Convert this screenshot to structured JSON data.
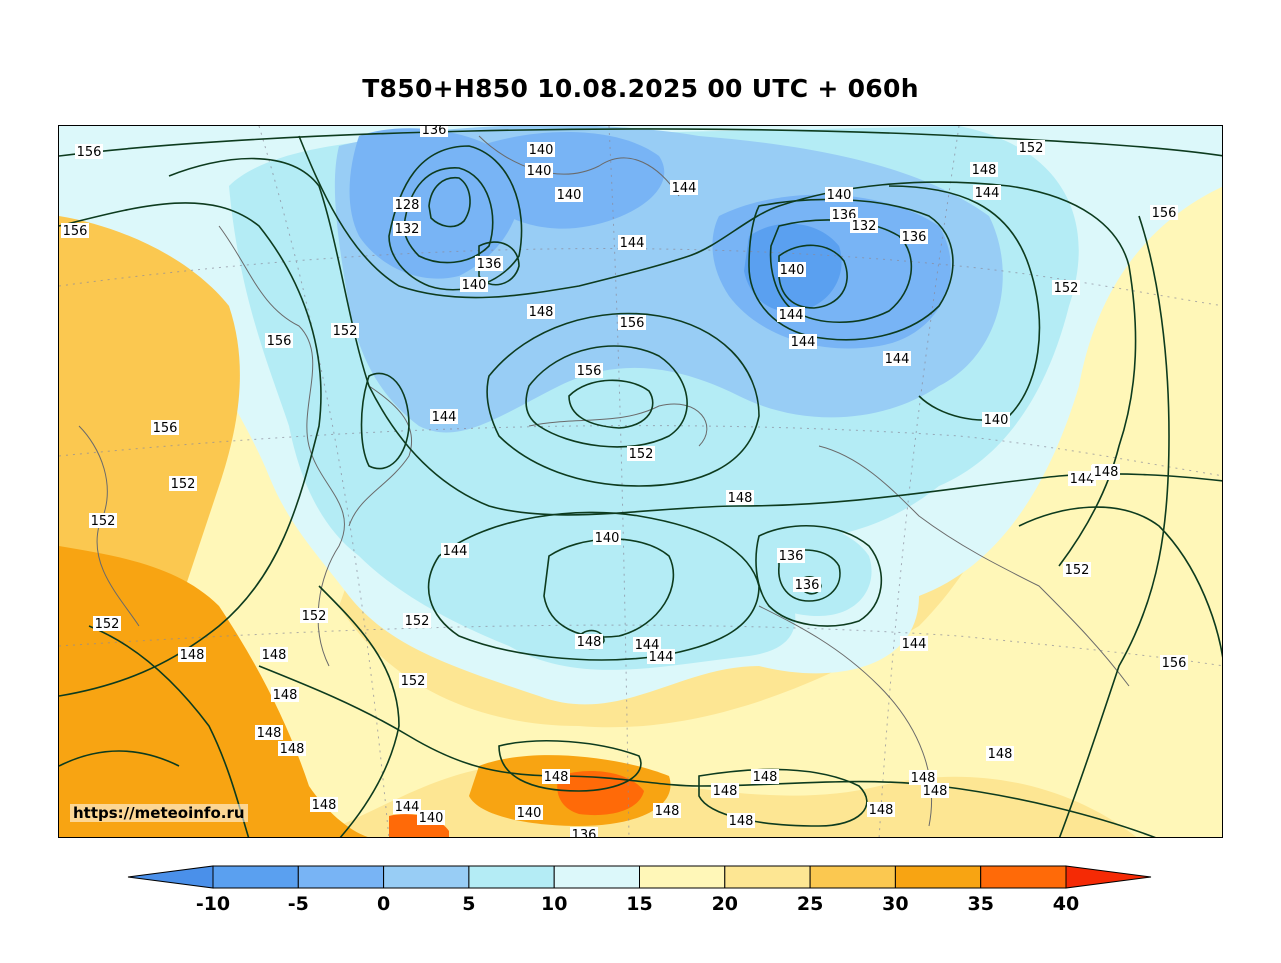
{
  "title": "T850+H850 10.08.2025 00 UTC + 060h",
  "watermark": "https://meteoinfo.ru",
  "map": {
    "isoline_labels": [
      "156",
      "156",
      "136",
      "128",
      "132",
      "136",
      "140",
      "140",
      "140",
      "140",
      "144",
      "144",
      "152",
      "148",
      "144",
      "140",
      "136",
      "132",
      "136",
      "140",
      "144",
      "144",
      "156",
      "152",
      "148",
      "156",
      "156",
      "152",
      "152",
      "144",
      "156",
      "156",
      "152",
      "144",
      "140",
      "136",
      "144",
      "148",
      "136",
      "144",
      "140",
      "144",
      "148",
      "152",
      "148",
      "156",
      "152",
      "152",
      "152",
      "148",
      "152",
      "148",
      "148",
      "148",
      "148",
      "152",
      "148",
      "144",
      "140",
      "140",
      "136",
      "144",
      "148",
      "144",
      "148",
      "148",
      "148",
      "148",
      "148",
      "148",
      "148",
      "148",
      "148"
    ],
    "contour_color": "#0d3b1e"
  },
  "colorbar": {
    "ticks": [
      "-10",
      "-5",
      "0",
      "5",
      "10",
      "15",
      "20",
      "25",
      "30",
      "35",
      "40"
    ],
    "colors": {
      "below": "#4a90ea",
      "bins": [
        "#5aa0f0",
        "#78b4f5",
        "#98cdf5",
        "#b4ecf5",
        "#dcf8fa",
        "#fff7b8",
        "#fde693",
        "#fbc850",
        "#f8a412",
        "#ff6a08"
      ],
      "above": "#f52a05"
    }
  }
}
